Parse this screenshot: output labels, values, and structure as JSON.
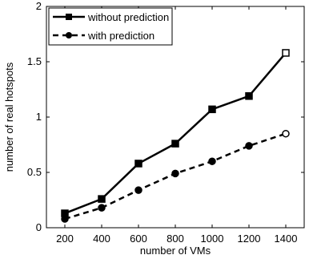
{
  "chart_data": {
    "type": "line",
    "title": "",
    "xlabel": "number of VMs",
    "ylabel": "number of real hotspots",
    "x": [
      200,
      400,
      600,
      800,
      1000,
      1200,
      1400
    ],
    "xlim": [
      100,
      1500
    ],
    "ylim": [
      0,
      2
    ],
    "xticks": [
      "200",
      "400",
      "600",
      "800",
      "1000",
      "1200",
      "1400"
    ],
    "yticks": [
      "0",
      "0.5",
      "1",
      "1.5",
      "2"
    ],
    "grid": false,
    "legend_position": "top-left",
    "series": [
      {
        "name": "without prediction",
        "values": [
          0.13,
          0.26,
          0.58,
          0.76,
          1.07,
          1.19,
          1.58
        ],
        "line_style": "solid",
        "marker": "square",
        "color": "#000000"
      },
      {
        "name": "with prediction",
        "values": [
          0.08,
          0.18,
          0.34,
          0.49,
          0.6,
          0.74,
          0.85
        ],
        "line_style": "dashed",
        "marker": "circle",
        "color": "#000000"
      }
    ]
  }
}
